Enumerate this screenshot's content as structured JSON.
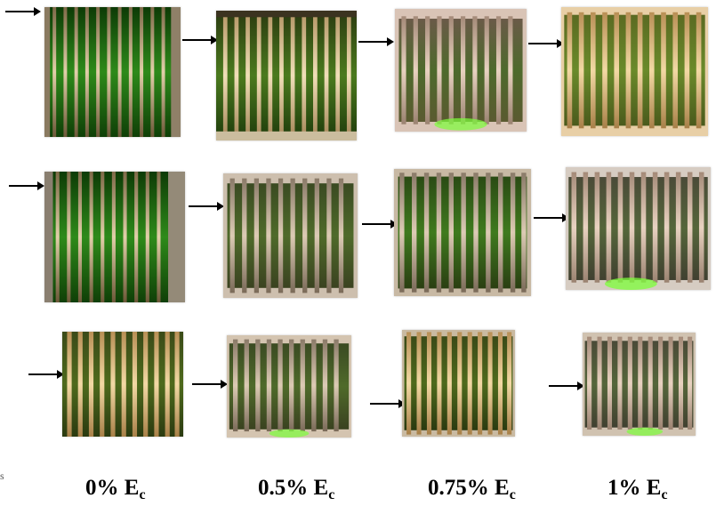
{
  "labels": [
    {
      "text": "0% E",
      "sub": "c"
    },
    {
      "text": "0.5% E",
      "sub": "c"
    },
    {
      "text": "0.75% E",
      "sub": "c"
    },
    {
      "text": "1% E",
      "sub": "c"
    }
  ],
  "edge_mark": "s",
  "colors": {
    "ring": "#c9b28a",
    "ring_shadow": "#6e5a3c",
    "groove_fresh": "#1f6a12",
    "groove_dark": "#123f0a",
    "arrow": "#000000"
  },
  "grid": {
    "rows": 3,
    "columns": 4,
    "content": "photographs of threaded specimens with green grooves; arrow points to each specimen"
  }
}
